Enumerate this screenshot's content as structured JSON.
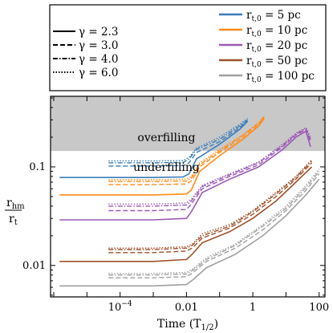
{
  "chart_data": {
    "type": "line",
    "xlabel": "Time (T",
    "xlabel_sub": "1/2",
    "xlabel_close": ")",
    "ylabel_num": "r",
    "ylabel_num_sub": "hm",
    "ylabel_den": "r",
    "ylabel_den_sub": "t",
    "xscale": "log",
    "yscale": "log",
    "xlim": [
      8e-07,
      150
    ],
    "ylim": [
      0.0048,
      0.52
    ],
    "x_ticks": [
      {
        "value": 0.0001,
        "base": "10",
        "exp": "−4"
      },
      {
        "value": 0.01,
        "label": "0.01"
      },
      {
        "value": 1,
        "label": "1"
      },
      {
        "value": 100,
        "label": "100"
      }
    ],
    "y_ticks": [
      {
        "value": 0.01,
        "label": "0.01"
      },
      {
        "value": 0.1,
        "label": "0.1"
      }
    ],
    "shaded_region": {
      "ymin": 0.145,
      "ymax": 0.52,
      "color": "#c8c8c8"
    },
    "annotations": [
      {
        "text": "overfilling",
        "x": 0.0025,
        "y": 0.2
      },
      {
        "text": "underfilling",
        "x": 0.0025,
        "y": 0.1
      }
    ],
    "legend_gamma": [
      {
        "label": "γ = 2.3",
        "dash": "solid"
      },
      {
        "label": "γ = 3.0",
        "dash": "dashed"
      },
      {
        "label": "γ = 4.0",
        "dash": "dashdot"
      },
      {
        "label": "γ = 6.0",
        "dash": "dotted"
      }
    ],
    "legend_rt": [
      {
        "prefix": "r",
        "sub": "t,0",
        "label": " = 5 pc",
        "color": "#3b7dba"
      },
      {
        "prefix": "r",
        "sub": "t,0",
        "label": " = 10 pc",
        "color": "#ff8c1a"
      },
      {
        "prefix": "r",
        "sub": "t,0",
        "label": " = 20 pc",
        "color": "#9b59b6"
      },
      {
        "prefix": "r",
        "sub": "t,0",
        "label": " = 50 pc",
        "color": "#a0522d"
      },
      {
        "prefix": "r",
        "sub": "t,0",
        "label": " = 100 pc",
        "color": "#a0a0a0"
      }
    ],
    "series": [
      {
        "rt": 5,
        "gamma": 2.3,
        "dash": "solid",
        "color": "#3b7dba",
        "x": [
          1.5e-06,
          0.001,
          0.008,
          0.012,
          0.02,
          0.1,
          0.4,
          0.7
        ],
        "y": [
          0.078,
          0.078,
          0.079,
          0.085,
          0.12,
          0.17,
          0.24,
          0.29
        ]
      },
      {
        "rt": 5,
        "gamma": 3.0,
        "dash": "dashed",
        "color": "#3b7dba",
        "x": [
          4.5e-05,
          0.001,
          0.008,
          0.012,
          0.02,
          0.1,
          0.4,
          0.7
        ],
        "y": [
          0.102,
          0.102,
          0.103,
          0.11,
          0.14,
          0.18,
          0.25,
          0.3
        ]
      },
      {
        "rt": 5,
        "gamma": 4.0,
        "dash": "dashdot",
        "color": "#3b7dba",
        "x": [
          4.5e-05,
          0.001,
          0.008,
          0.012,
          0.02,
          0.1,
          0.4,
          0.7
        ],
        "y": [
          0.11,
          0.11,
          0.111,
          0.12,
          0.15,
          0.19,
          0.26,
          0.3
        ]
      },
      {
        "rt": 5,
        "gamma": 6.0,
        "dash": "dotted",
        "color": "#3b7dba",
        "x": [
          4.5e-05,
          0.001,
          0.008,
          0.012,
          0.02,
          0.1,
          0.4,
          0.7
        ],
        "y": [
          0.115,
          0.115,
          0.116,
          0.125,
          0.155,
          0.2,
          0.27,
          0.31
        ]
      },
      {
        "rt": 10,
        "gamma": 2.3,
        "dash": "solid",
        "color": "#ff8c1a",
        "x": [
          1.5e-06,
          0.001,
          0.01,
          0.014,
          0.025,
          0.1,
          0.5,
          1.5,
          2.2
        ],
        "y": [
          0.052,
          0.052,
          0.053,
          0.058,
          0.09,
          0.13,
          0.19,
          0.26,
          0.31
        ]
      },
      {
        "rt": 10,
        "gamma": 3.0,
        "dash": "dashed",
        "color": "#ff8c1a",
        "x": [
          4.5e-05,
          0.001,
          0.01,
          0.014,
          0.025,
          0.1,
          0.5,
          1.5,
          2.2
        ],
        "y": [
          0.066,
          0.066,
          0.067,
          0.072,
          0.1,
          0.14,
          0.2,
          0.27,
          0.32
        ]
      },
      {
        "rt": 10,
        "gamma": 4.0,
        "dash": "dashdot",
        "color": "#ff8c1a",
        "x": [
          4.5e-05,
          0.001,
          0.01,
          0.014,
          0.025,
          0.1,
          0.5,
          1.5,
          2.2
        ],
        "y": [
          0.071,
          0.071,
          0.072,
          0.077,
          0.105,
          0.145,
          0.21,
          0.28,
          0.32
        ]
      },
      {
        "rt": 10,
        "gamma": 6.0,
        "dash": "dotted",
        "color": "#ff8c1a",
        "x": [
          4.5e-05,
          0.001,
          0.01,
          0.014,
          0.025,
          0.1,
          0.5,
          1.5,
          2.2
        ],
        "y": [
          0.074,
          0.074,
          0.075,
          0.08,
          0.11,
          0.15,
          0.21,
          0.28,
          0.33
        ]
      },
      {
        "rt": 20,
        "gamma": 2.3,
        "dash": "solid",
        "color": "#9b59b6",
        "x": [
          1.5e-06,
          0.001,
          0.01,
          0.014,
          0.03,
          0.2,
          1.5,
          8,
          20,
          40,
          55
        ],
        "y": [
          0.029,
          0.029,
          0.03,
          0.035,
          0.055,
          0.075,
          0.1,
          0.15,
          0.2,
          0.23,
          0.16
        ]
      },
      {
        "rt": 20,
        "gamma": 3.0,
        "dash": "dashed",
        "color": "#9b59b6",
        "x": [
          4.5e-05,
          0.001,
          0.01,
          0.014,
          0.03,
          0.2,
          1.5,
          8,
          20,
          40,
          55
        ],
        "y": [
          0.036,
          0.036,
          0.037,
          0.042,
          0.06,
          0.08,
          0.105,
          0.16,
          0.21,
          0.24,
          0.18
        ]
      },
      {
        "rt": 20,
        "gamma": 4.0,
        "dash": "dashdot",
        "color": "#9b59b6",
        "x": [
          4.5e-05,
          0.001,
          0.01,
          0.014,
          0.03,
          0.2,
          1.5,
          8,
          20,
          40,
          55
        ],
        "y": [
          0.04,
          0.04,
          0.041,
          0.045,
          0.063,
          0.083,
          0.11,
          0.165,
          0.215,
          0.245,
          0.19
        ]
      },
      {
        "rt": 20,
        "gamma": 6.0,
        "dash": "dotted",
        "color": "#9b59b6",
        "x": [
          4.5e-05,
          0.001,
          0.01,
          0.014,
          0.03,
          0.2,
          1.5,
          8,
          20,
          40,
          55
        ],
        "y": [
          0.042,
          0.042,
          0.043,
          0.047,
          0.065,
          0.085,
          0.112,
          0.17,
          0.22,
          0.25,
          0.2
        ]
      },
      {
        "rt": 50,
        "gamma": 2.3,
        "dash": "solid",
        "color": "#a0522d",
        "x": [
          1.5e-06,
          0.001,
          0.01,
          0.015,
          0.03,
          0.2,
          1,
          5,
          20,
          60
        ],
        "y": [
          0.011,
          0.011,
          0.0115,
          0.013,
          0.017,
          0.022,
          0.03,
          0.045,
          0.07,
          0.1
        ]
      },
      {
        "rt": 50,
        "gamma": 3.0,
        "dash": "dashed",
        "color": "#a0522d",
        "x": [
          4.5e-05,
          0.001,
          0.01,
          0.015,
          0.03,
          0.2,
          1,
          5,
          20,
          60
        ],
        "y": [
          0.0135,
          0.0135,
          0.014,
          0.015,
          0.019,
          0.024,
          0.033,
          0.05,
          0.075,
          0.11
        ]
      },
      {
        "rt": 50,
        "gamma": 4.0,
        "dash": "dashdot",
        "color": "#a0522d",
        "x": [
          4.5e-05,
          0.001,
          0.01,
          0.015,
          0.03,
          0.2,
          1,
          5,
          20,
          60
        ],
        "y": [
          0.0145,
          0.0145,
          0.015,
          0.016,
          0.02,
          0.025,
          0.035,
          0.053,
          0.078,
          0.115
        ]
      },
      {
        "rt": 50,
        "gamma": 6.0,
        "dash": "dotted",
        "color": "#a0522d",
        "x": [
          4.5e-05,
          0.001,
          0.01,
          0.015,
          0.03,
          0.2,
          1,
          5,
          20,
          60
        ],
        "y": [
          0.015,
          0.015,
          0.0155,
          0.0165,
          0.021,
          0.026,
          0.036,
          0.055,
          0.08,
          0.118
        ]
      },
      {
        "rt": 100,
        "gamma": 2.3,
        "dash": "solid",
        "color": "#a0a0a0",
        "x": [
          1.5e-06,
          0.001,
          0.01,
          0.016,
          0.04,
          0.3,
          2,
          10,
          40,
          100
        ],
        "y": [
          0.0062,
          0.0062,
          0.0064,
          0.0072,
          0.0095,
          0.013,
          0.02,
          0.032,
          0.052,
          0.075
        ]
      },
      {
        "rt": 100,
        "gamma": 3.0,
        "dash": "dashed",
        "color": "#a0a0a0",
        "x": [
          4.5e-05,
          0.001,
          0.01,
          0.016,
          0.04,
          0.3,
          2,
          10,
          40,
          100
        ],
        "y": [
          0.0075,
          0.0075,
          0.0077,
          0.0085,
          0.011,
          0.015,
          0.023,
          0.036,
          0.058,
          0.085
        ]
      },
      {
        "rt": 100,
        "gamma": 4.0,
        "dash": "dashdot",
        "color": "#a0a0a0",
        "x": [
          4.5e-05,
          0.001,
          0.01,
          0.016,
          0.04,
          0.3,
          2,
          10,
          40,
          100
        ],
        "y": [
          0.008,
          0.008,
          0.0082,
          0.009,
          0.0115,
          0.016,
          0.025,
          0.038,
          0.062,
          0.09
        ]
      },
      {
        "rt": 100,
        "gamma": 6.0,
        "dash": "dotted",
        "color": "#a0a0a0",
        "x": [
          4.5e-05,
          0.001,
          0.01,
          0.016,
          0.04,
          0.3,
          2,
          10,
          40,
          100
        ],
        "y": [
          0.0083,
          0.0083,
          0.0085,
          0.0093,
          0.012,
          0.0165,
          0.026,
          0.04,
          0.065,
          0.095
        ]
      }
    ]
  }
}
